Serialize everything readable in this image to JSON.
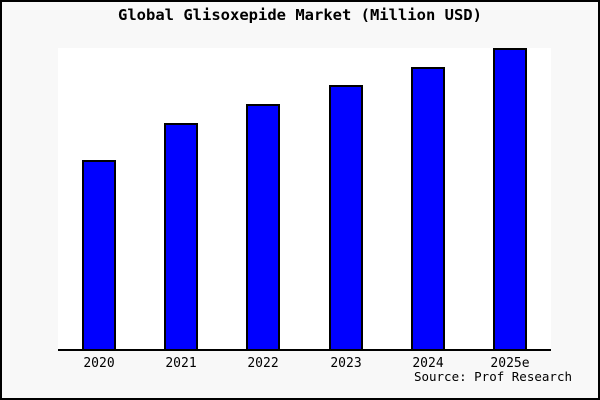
{
  "title": "Global Glisoxepide Market (Million USD)",
  "source": "Source: Prof Research",
  "window": {
    "background": "#f8f8f8",
    "plot_background": "#ffffff",
    "frame_border_color": "#000000",
    "axis_color": "#000000"
  },
  "chart_data": {
    "type": "bar",
    "title": "Global Glisoxepide Market (Million USD)",
    "categories": [
      "2020",
      "2021",
      "2022",
      "2023",
      "2024",
      "2025e"
    ],
    "values": [
      62.8,
      75.1,
      81.4,
      87.7,
      93.7,
      100
    ],
    "value_note": "no y-axis ticks shown in image; values are relative bar heights with 2025e = 100",
    "xlabel": "",
    "ylabel": "",
    "ylim": [
      0,
      100
    ],
    "grid": false,
    "legend": "none",
    "bar_color": "#0000ff",
    "bar_border_color": "#000000",
    "source_label": "Source: Prof Research"
  }
}
